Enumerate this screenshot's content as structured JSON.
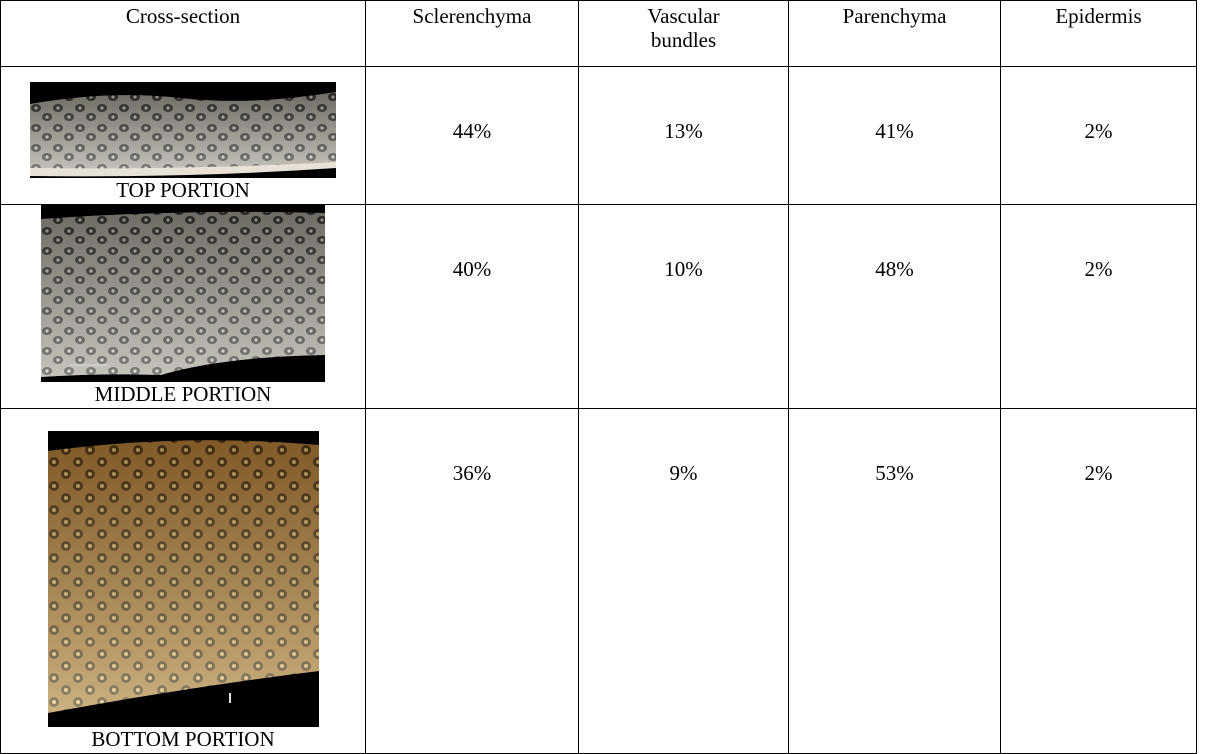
{
  "table": {
    "header": [
      "Cross-section",
      "Sclerenchyma",
      "Vascular bundles",
      "Parenchyma",
      "Epidermis"
    ],
    "rows": [
      [
        "TOP PORTION",
        "44%",
        "13%",
        "41%",
        "2%"
      ],
      [
        "MIDDLE PORTION",
        "40%",
        "10%",
        "48%",
        "2%"
      ],
      [
        "BOTTOM PORTION",
        "36%",
        "9%",
        "53%",
        "2%"
      ]
    ]
  }
}
